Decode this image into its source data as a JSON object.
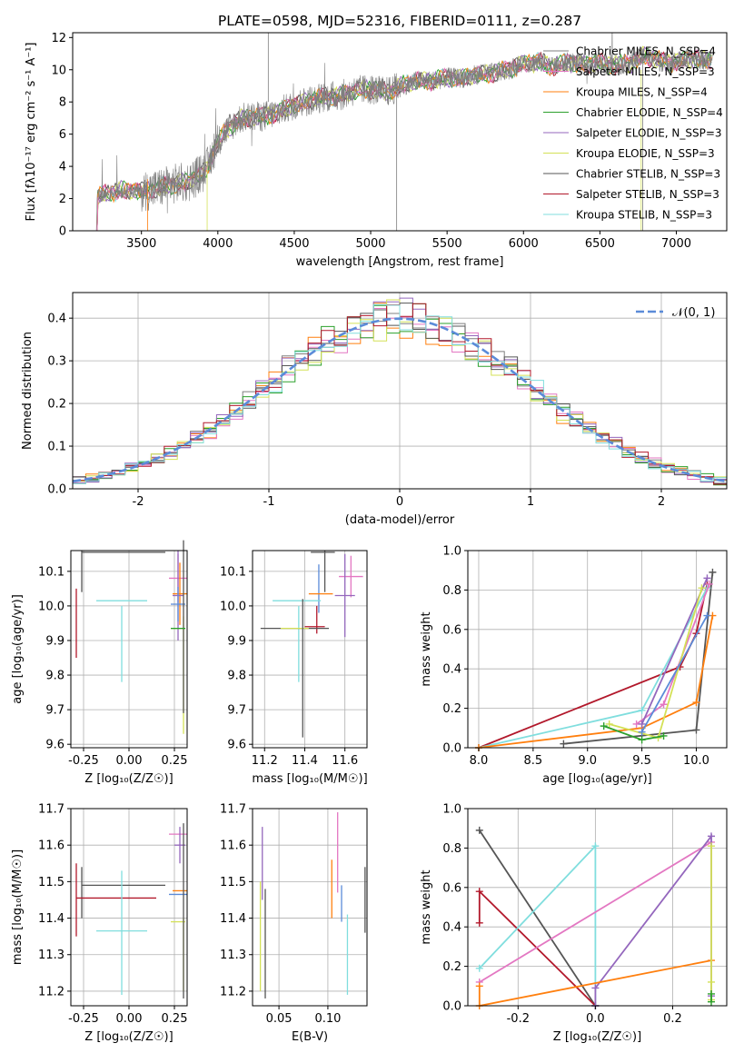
{
  "colors": {
    "chabrier_miles": "#7f7f7f",
    "salpeter_miles": "#e377c2",
    "kroupa_miles": "#ff7f0e",
    "chabrier_elodie": "#2ca02c",
    "salpeter_elodie": "#9467bd",
    "kroupa_elodie": "#d4e157",
    "chabrier_stelib": "#555555",
    "salpeter_stelib": "#b2182b",
    "kroupa_stelib": "#80dede",
    "extra_blue": "#5b8bd8"
  },
  "chart_data": [
    {
      "id": "spectrum",
      "type": "line",
      "title": "PLATE=0598, MJD=52316, FIBERID=0111, z=0.287",
      "xlabel": "wavelength [Angstrom, rest frame]",
      "ylabel": "Flux [fλ10⁻¹⁷ erg cm⁻² s⁻¹ A⁻¹]",
      "xlim": [
        3050,
        7330
      ],
      "ylim": [
        0,
        12.3
      ],
      "xticks": [
        3500,
        4000,
        4500,
        5000,
        5500,
        6000,
        6500,
        7000
      ],
      "yticks": [
        0,
        2,
        4,
        6,
        8,
        10,
        12
      ],
      "grid": false,
      "legend_position": "right",
      "continuum": {
        "x": [
          3210,
          3300,
          3400,
          3500,
          3600,
          3700,
          3800,
          3900,
          3930,
          3980,
          4050,
          4150,
          4300,
          4400,
          4500,
          4600,
          4700,
          4800,
          4900,
          5000,
          5100,
          5200,
          5300,
          5400,
          5500,
          5600,
          5700,
          5800,
          5900,
          6000,
          6100,
          6200,
          6300,
          6400,
          6500,
          6600,
          6700,
          6800,
          6900,
          7000,
          7100,
          7200
        ],
        "y": [
          2.1,
          2.4,
          2.5,
          2.45,
          2.6,
          2.9,
          3.0,
          3.6,
          3.9,
          5.2,
          6.2,
          7.0,
          7.1,
          7.4,
          7.8,
          8.1,
          8.3,
          8.4,
          8.7,
          8.8,
          8.6,
          9.0,
          9.3,
          9.3,
          9.5,
          9.5,
          9.7,
          9.8,
          10.0,
          10.4,
          10.5,
          10.2,
          10.5,
          10.3,
          10.4,
          10.3,
          10.4,
          10.9,
          10.5,
          10.5,
          10.7,
          10.6
        ]
      },
      "series": [
        {
          "name": "Chabrier MILES, N_SSP=4",
          "color_key": "chabrier_miles"
        },
        {
          "name": "Salpeter MILES, N_SSP=3",
          "color_key": "salpeter_miles"
        },
        {
          "name": "Kroupa MILES, N_SSP=4",
          "color_key": "kroupa_miles"
        },
        {
          "name": "Chabrier ELODIE, N_SSP=4",
          "color_key": "chabrier_elodie"
        },
        {
          "name": "Salpeter ELODIE, N_SSP=3",
          "color_key": "salpeter_elodie"
        },
        {
          "name": "Kroupa ELODIE, N_SSP=3",
          "color_key": "kroupa_elodie"
        },
        {
          "name": "Chabrier STELIB, N_SSP=3",
          "color_key": "chabrier_stelib"
        },
        {
          "name": "Salpeter STELIB, N_SSP=3",
          "color_key": "salpeter_stelib"
        },
        {
          "name": "Kroupa STELIB, N_SSP=3",
          "color_key": "kroupa_stelib"
        }
      ]
    },
    {
      "id": "residuals",
      "type": "line",
      "xlabel": "(data-model)/error",
      "ylabel": "Normed distribution",
      "xlim": [
        -2.5,
        2.5
      ],
      "ylim": [
        0,
        0.46
      ],
      "xticks": [
        -2,
        -1,
        0,
        1,
        2
      ],
      "yticks": [
        0.0,
        0.1,
        0.2,
        0.3,
        0.4
      ],
      "grid": true,
      "legend": "𝒩(0, 1)",
      "legend_position": "top-right",
      "bin_width": 0.1
    },
    {
      "id": "age_vs_Z",
      "type": "scatter",
      "xlabel": "Z [log₁₀(Z/Z☉)]",
      "ylabel": "age  [log₁₀(age/yr)]",
      "xlim": [
        -0.32,
        0.32
      ],
      "ylim": [
        9.59,
        10.16
      ],
      "xticks": [
        -0.25,
        0.0,
        0.25
      ],
      "yticks": [
        9.6,
        9.7,
        9.8,
        9.9,
        10.0,
        10.1
      ],
      "grid": true,
      "points": [
        {
          "color_key": "chabrier_stelib",
          "x": -0.03,
          "xerr": 0.23,
          "y": 10.155,
          "yerr": 0.0
        },
        {
          "color_key": "chabrier_stelib",
          "x": -0.26,
          "xerr": 0.0,
          "y": 10.1,
          "yerr": 0.06
        },
        {
          "color_key": "kroupa_stelib",
          "x": -0.04,
          "xerr": 0.14,
          "y": 10.015,
          "yerr": 0.0
        },
        {
          "color_key": "kroupa_stelib",
          "x": -0.04,
          "xerr": 0.0,
          "y": 9.89,
          "yerr": 0.11
        },
        {
          "color_key": "salpeter_stelib",
          "x": -0.07,
          "xerr": 0.0,
          "y": 9.94,
          "yerr": 0.0
        },
        {
          "color_key": "salpeter_stelib",
          "x": -0.29,
          "xerr": 0.0,
          "y": 9.95,
          "yerr": 0.1
        },
        {
          "color_key": "salpeter_miles",
          "x": 0.27,
          "xerr": 0.05,
          "y": 10.08,
          "yerr": 0.07
        },
        {
          "color_key": "kroupa_miles",
          "x": 0.28,
          "xerr": 0.04,
          "y": 10.035,
          "yerr": 0.09
        },
        {
          "color_key": "salpeter_elodie",
          "x": 0.27,
          "xerr": 0.03,
          "y": 10.03,
          "yerr": 0.13
        },
        {
          "color_key": "extra_blue",
          "x": 0.27,
          "xerr": 0.04,
          "y": 10.005,
          "yerr": 0.05
        },
        {
          "color_key": "kroupa_elodie",
          "x": 0.27,
          "xerr": 0.04,
          "y": 9.935,
          "yerr": 0.0
        },
        {
          "color_key": "kroupa_elodie",
          "x": 0.3,
          "xerr": 0.0,
          "y": 9.8,
          "yerr": 0.17
        },
        {
          "color_key": "chabrier_stelib",
          "x": 0.3,
          "xerr": 0.0,
          "y": 9.94,
          "yerr": 0.25
        },
        {
          "color_key": "chabrier_elodie",
          "x": 0.27,
          "xerr": 0.04,
          "y": 9.935,
          "yerr": 0.0
        }
      ]
    },
    {
      "id": "age_vs_mass",
      "type": "scatter",
      "xlabel": "mass [log₁₀(M/M☉)]",
      "ylabel": "",
      "xlim": [
        11.14,
        11.71
      ],
      "ylim": [
        9.59,
        10.16
      ],
      "xticks": [
        11.2,
        11.4,
        11.6
      ],
      "yticks": [
        9.6,
        9.7,
        9.8,
        9.9,
        10.0,
        10.1
      ],
      "grid": true,
      "points": [
        {
          "color_key": "chabrier_stelib",
          "x": 11.49,
          "xerr": 0.06,
          "y": 10.155,
          "yerr": 0.0
        },
        {
          "color_key": "chabrier_stelib",
          "x": 11.5,
          "xerr": 0.0,
          "y": 10.1,
          "yerr": 0.06
        },
        {
          "color_key": "salpeter_miles",
          "x": 11.63,
          "xerr": 0.06,
          "y": 10.085,
          "yerr": 0.06
        },
        {
          "color_key": "extra_blue",
          "x": 11.47,
          "xerr": 0.0,
          "y": 10.05,
          "yerr": 0.07
        },
        {
          "color_key": "kroupa_miles",
          "x": 11.48,
          "xerr": 0.06,
          "y": 10.035,
          "yerr": 0.0
        },
        {
          "color_key": "salpeter_elodie",
          "x": 11.6,
          "xerr": 0.05,
          "y": 10.03,
          "yerr": 0.12
        },
        {
          "color_key": "kroupa_stelib",
          "x": 11.36,
          "xerr": 0.12,
          "y": 10.015,
          "yerr": 0.0
        },
        {
          "color_key": "kroupa_stelib",
          "x": 11.37,
          "xerr": 0.0,
          "y": 9.89,
          "yerr": 0.11
        },
        {
          "color_key": "salpeter_stelib",
          "x": 11.45,
          "xerr": 0.05,
          "y": 9.94,
          "yerr": 0.0
        },
        {
          "color_key": "salpeter_stelib",
          "x": 11.46,
          "xerr": 0.0,
          "y": 9.96,
          "yerr": 0.04
        },
        {
          "color_key": "chabrier_stelib",
          "x": 11.35,
          "xerr": 0.17,
          "y": 9.935,
          "yerr": 0.0
        },
        {
          "color_key": "kroupa_elodie",
          "x": 11.35,
          "xerr": 0.07,
          "y": 9.935,
          "yerr": 0.0
        },
        {
          "color_key": "chabrier_stelib",
          "x": 11.39,
          "xerr": 0.0,
          "y": 9.82,
          "yerr": 0.2
        }
      ]
    },
    {
      "id": "mass_weight_vs_age",
      "type": "line",
      "xlabel": "age  [log₁₀(age/yr)]",
      "ylabel": "mass weight",
      "xlim": [
        7.9,
        10.28
      ],
      "ylim": [
        0,
        1.0
      ],
      "xticks": [
        8.0,
        8.5,
        9.0,
        9.5,
        10.0
      ],
      "yticks": [
        0.0,
        0.2,
        0.4,
        0.6,
        0.8,
        1.0
      ],
      "grid": true,
      "series": [
        {
          "color_key": "salpeter_stelib",
          "x": [
            8.0,
            9.85,
            10.0,
            10.1
          ],
          "y": [
            0.0,
            0.41,
            0.58,
            0.83
          ]
        },
        {
          "color_key": "chabrier_stelib",
          "x": [
            8.78,
            10.0,
            10.15
          ],
          "y": [
            0.02,
            0.09,
            0.89
          ]
        },
        {
          "color_key": "kroupa_stelib",
          "x": [
            8.0,
            9.5,
            10.1
          ],
          "y": [
            0.0,
            0.19,
            0.81
          ]
        },
        {
          "color_key": "kroupa_miles",
          "x": [
            8.0,
            9.5,
            10.0,
            10.15
          ],
          "y": [
            0.0,
            0.1,
            0.23,
            0.67
          ]
        },
        {
          "color_key": "salpeter_miles",
          "x": [
            9.45,
            9.7,
            10.12
          ],
          "y": [
            0.12,
            0.22,
            0.83
          ]
        },
        {
          "color_key": "salpeter_elodie",
          "x": [
            9.5,
            10.1
          ],
          "y": [
            0.12,
            0.86
          ]
        },
        {
          "color_key": "kroupa_elodie",
          "x": [
            9.2,
            9.65,
            10.05
          ],
          "y": [
            0.12,
            0.05,
            0.81
          ]
        },
        {
          "color_key": "chabrier_elodie",
          "x": [
            9.15,
            9.5,
            9.7
          ],
          "y": [
            0.11,
            0.04,
            0.06
          ]
        },
        {
          "color_key": "extra_blue",
          "x": [
            9.5,
            10.1
          ],
          "y": [
            0.08,
            0.67
          ]
        }
      ]
    },
    {
      "id": "mass_vs_Z",
      "type": "scatter",
      "xlabel": "Z [log₁₀(Z/Z☉)]",
      "ylabel": "mass [log₁₀(M/M☉)]",
      "xlim": [
        -0.32,
        0.32
      ],
      "ylim": [
        11.16,
        11.7
      ],
      "xticks": [
        -0.25,
        0.0,
        0.25
      ],
      "yticks": [
        11.2,
        11.3,
        11.4,
        11.5,
        11.6,
        11.7
      ],
      "grid": true,
      "points": [
        {
          "color_key": "chabrier_stelib",
          "x": -0.03,
          "xerr": 0.23,
          "y": 11.49,
          "yerr": 0.0
        },
        {
          "color_key": "chabrier_stelib",
          "x": -0.26,
          "xerr": 0.0,
          "y": 11.47,
          "yerr": 0.07
        },
        {
          "color_key": "salpeter_stelib",
          "x": -0.07,
          "xerr": 0.22,
          "y": 11.455,
          "yerr": 0.0
        },
        {
          "color_key": "salpeter_stelib",
          "x": -0.29,
          "xerr": 0.0,
          "y": 11.45,
          "yerr": 0.1
        },
        {
          "color_key": "kroupa_stelib",
          "x": -0.04,
          "xerr": 0.14,
          "y": 11.365,
          "yerr": 0.0
        },
        {
          "color_key": "kroupa_stelib",
          "x": -0.04,
          "xerr": 0.0,
          "y": 11.36,
          "yerr": 0.17
        },
        {
          "color_key": "salpeter_miles",
          "x": 0.27,
          "xerr": 0.05,
          "y": 11.63,
          "yerr": 0.0
        },
        {
          "color_key": "salpeter_elodie",
          "x": 0.28,
          "xerr": 0.03,
          "y": 11.6,
          "yerr": 0.05
        },
        {
          "color_key": "kroupa_miles",
          "x": 0.28,
          "xerr": 0.04,
          "y": 11.475,
          "yerr": 0.0
        },
        {
          "color_key": "extra_blue",
          "x": 0.27,
          "xerr": 0.05,
          "y": 11.465,
          "yerr": 0.0
        },
        {
          "color_key": "kroupa_elodie",
          "x": 0.27,
          "xerr": 0.04,
          "y": 11.39,
          "yerr": 0.0
        },
        {
          "color_key": "kroupa_elodie",
          "x": 0.3,
          "xerr": 0.0,
          "y": 11.3,
          "yerr": 0.1
        },
        {
          "color_key": "chabrier_stelib",
          "x": 0.3,
          "xerr": 0.0,
          "y": 11.42,
          "yerr": 0.24
        }
      ]
    },
    {
      "id": "mass_vs_EBV",
      "type": "scatter",
      "xlabel": "E(B-V)",
      "ylabel": "",
      "xlim": [
        0.023,
        0.14
      ],
      "ylim": [
        11.16,
        11.7
      ],
      "xticks": [
        0.05,
        0.1
      ],
      "yticks": [
        11.2,
        11.3,
        11.4,
        11.5,
        11.6,
        11.7
      ],
      "grid": true,
      "points": [
        {
          "color_key": "salpeter_elodie",
          "x": 0.033,
          "xerr": 0.0,
          "y": 11.55,
          "yerr": 0.1
        },
        {
          "color_key": "kroupa_elodie",
          "x": 0.031,
          "xerr": 0.0,
          "y": 11.35,
          "yerr": 0.15
        },
        {
          "color_key": "chabrier_stelib",
          "x": 0.036,
          "xerr": 0.0,
          "y": 11.33,
          "yerr": 0.15
        },
        {
          "color_key": "kroupa_miles",
          "x": 0.104,
          "xerr": 0.0,
          "y": 11.48,
          "yerr": 0.08
        },
        {
          "color_key": "salpeter_miles",
          "x": 0.11,
          "xerr": 0.0,
          "y": 11.58,
          "yerr": 0.11
        },
        {
          "color_key": "extra_blue",
          "x": 0.114,
          "xerr": 0.0,
          "y": 11.44,
          "yerr": 0.05
        },
        {
          "color_key": "kroupa_stelib",
          "x": 0.12,
          "xerr": 0.0,
          "y": 11.3,
          "yerr": 0.11
        },
        {
          "color_key": "chabrier_stelib",
          "x": 0.138,
          "xerr": 0.0,
          "y": 11.45,
          "yerr": 0.09
        }
      ]
    },
    {
      "id": "mass_weight_vs_Z",
      "type": "line",
      "xlabel": "Z [log₁₀(Z/Z☉)]",
      "ylabel": "mass weight",
      "xlim": [
        -0.33,
        0.34
      ],
      "ylim": [
        0,
        1.0
      ],
      "xticks": [
        -0.2,
        0.0,
        0.2
      ],
      "yticks": [
        0.0,
        0.2,
        0.4,
        0.6,
        0.8,
        1.0
      ],
      "grid": true,
      "series": [
        {
          "color_key": "chabrier_stelib",
          "x": [
            -0.3,
            0.0
          ],
          "y": [
            0.89,
            0.0
          ]
        },
        {
          "color_key": "salpeter_stelib",
          "x": [
            -0.3,
            -0.3,
            0.0
          ],
          "y": [
            0.42,
            0.58,
            0.0
          ]
        },
        {
          "color_key": "kroupa_stelib",
          "x": [
            -0.3,
            0.0,
            0.0
          ],
          "y": [
            0.19,
            0.81,
            0.0
          ]
        },
        {
          "color_key": "salpeter_miles",
          "x": [
            -0.3,
            0.3
          ],
          "y": [
            0.12,
            0.83
          ]
        },
        {
          "color_key": "salpeter_elodie",
          "x": [
            0.0,
            0.0,
            0.3,
            0.3
          ],
          "y": [
            0.0,
            0.09,
            0.86,
            0.05
          ]
        },
        {
          "color_key": "kroupa_miles",
          "x": [
            -0.3,
            -0.3,
            0.3
          ],
          "y": [
            0.1,
            0.0,
            0.23
          ]
        },
        {
          "color_key": "kroupa_elodie",
          "x": [
            0.3,
            0.3,
            0.3
          ],
          "y": [
            0.81,
            0.12,
            0.03
          ]
        },
        {
          "color_key": "chabrier_elodie",
          "x": [
            0.3,
            0.3
          ],
          "y": [
            0.06,
            0.02
          ]
        }
      ]
    }
  ]
}
